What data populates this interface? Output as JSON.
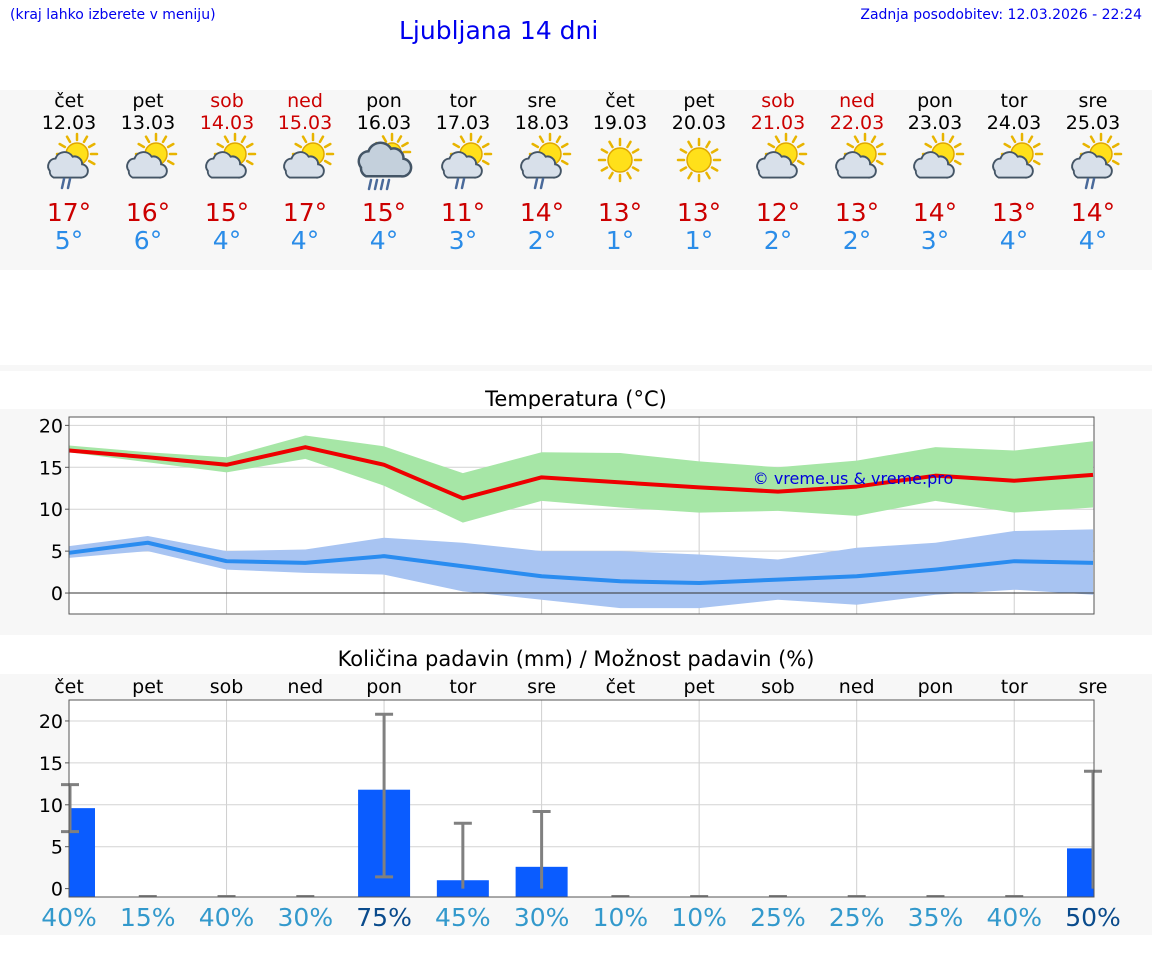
{
  "header": {
    "hint": "(kraj lahko izberete v meniju)",
    "title": "Ljubljana 14 dni",
    "updated": "Zadnja posodobitev: 12.03.2026 - 22:24"
  },
  "days": [
    {
      "name": "čet",
      "date": "12.03",
      "weekend": false,
      "icon": "partly-cloudy-sun-rain-icon",
      "max": "17°",
      "min": "5°"
    },
    {
      "name": "pet",
      "date": "13.03",
      "weekend": false,
      "icon": "partly-cloudy-sun-icon",
      "max": "16°",
      "min": "6°"
    },
    {
      "name": "sob",
      "date": "14.03",
      "weekend": true,
      "icon": "partly-cloudy-sun-icon",
      "max": "15°",
      "min": "4°"
    },
    {
      "name": "ned",
      "date": "15.03",
      "weekend": true,
      "icon": "partly-cloudy-sun-icon",
      "max": "17°",
      "min": "4°"
    },
    {
      "name": "pon",
      "date": "16.03",
      "weekend": false,
      "icon": "cloudy-rain-icon",
      "max": "15°",
      "min": "4°"
    },
    {
      "name": "tor",
      "date": "17.03",
      "weekend": false,
      "icon": "partly-cloudy-sun-rain-icon",
      "max": "11°",
      "min": "3°"
    },
    {
      "name": "sre",
      "date": "18.03",
      "weekend": false,
      "icon": "partly-cloudy-sun-rain-icon",
      "max": "14°",
      "min": "2°"
    },
    {
      "name": "čet",
      "date": "19.03",
      "weekend": false,
      "icon": "sun-icon",
      "max": "13°",
      "min": "1°"
    },
    {
      "name": "pet",
      "date": "20.03",
      "weekend": false,
      "icon": "sun-icon",
      "max": "13°",
      "min": "1°"
    },
    {
      "name": "sob",
      "date": "21.03",
      "weekend": true,
      "icon": "partly-cloudy-sun-icon",
      "max": "12°",
      "min": "2°"
    },
    {
      "name": "ned",
      "date": "22.03",
      "weekend": true,
      "icon": "partly-cloudy-sun-icon",
      "max": "13°",
      "min": "2°"
    },
    {
      "name": "pon",
      "date": "23.03",
      "weekend": false,
      "icon": "partly-cloudy-sun-icon",
      "max": "14°",
      "min": "3°"
    },
    {
      "name": "tor",
      "date": "24.03",
      "weekend": false,
      "icon": "partly-cloudy-sun-icon",
      "max": "13°",
      "min": "4°"
    },
    {
      "name": "sre",
      "date": "25.03",
      "weekend": false,
      "icon": "partly-cloudy-sun-rain-icon",
      "max": "14°",
      "min": "4°"
    }
  ],
  "colors": {
    "max_line": "#ee0000",
    "max_band": "#a6e6a6",
    "min_line": "#2a8cf0",
    "min_band": "#a8c4f2",
    "bar": "#0a5cff",
    "error": "#808080",
    "pct_light": "#3399cc",
    "pct_dark": "#0a4b8c"
  },
  "chart_data": [
    {
      "type": "line",
      "title": "Temperatura (°C)",
      "watermark": "© vreme.us & vreme.pro",
      "ylim": [
        -2.5,
        21
      ],
      "yticks": [
        "20",
        "15",
        "10",
        "5",
        "0"
      ],
      "x": [
        0,
        1,
        2,
        3,
        4,
        5,
        6,
        7,
        8,
        9,
        10,
        11,
        12,
        13
      ],
      "series": [
        {
          "name": "max",
          "values": [
            17,
            16.2,
            15.3,
            17.4,
            15.3,
            11.3,
            13.8,
            13.2,
            12.6,
            12.1,
            12.7,
            14,
            13.4,
            14.1
          ]
        },
        {
          "name": "min",
          "values": [
            4.8,
            6,
            3.8,
            3.6,
            4.4,
            3.2,
            2,
            1.4,
            1.2,
            1.6,
            2,
            2.8,
            3.8,
            3.6
          ]
        }
      ],
      "bands": [
        {
          "name": "max_range",
          "upper": [
            17.6,
            16.8,
            16.2,
            18.8,
            17.5,
            14.3,
            16.8,
            16.7,
            15.7,
            15,
            15.8,
            17.4,
            17,
            18.1
          ],
          "lower": [
            16.8,
            15.6,
            14.4,
            16,
            12.8,
            8.4,
            11,
            10.2,
            9.6,
            9.8,
            9.2,
            11,
            9.6,
            10.2
          ]
        },
        {
          "name": "min_range",
          "upper": [
            5.6,
            6.8,
            5,
            5.2,
            6.6,
            6,
            5,
            5,
            4.6,
            4,
            5.4,
            6,
            7.4,
            7.6
          ],
          "lower": [
            4.2,
            5,
            2.8,
            2.4,
            2.2,
            0.2,
            -0.8,
            -1.8,
            -1.8,
            -0.8,
            -1.4,
            -0.2,
            0.4,
            -0.2
          ]
        }
      ]
    },
    {
      "type": "bar",
      "title": "Količina padavin (mm) / Možnost padavin (%)",
      "ylim": [
        -1,
        22.5
      ],
      "yticks": [
        "20",
        "15",
        "10",
        "5",
        "0"
      ],
      "categories": [
        "čet",
        "pet",
        "sob",
        "ned",
        "pon",
        "tor",
        "sre",
        "čet",
        "pet",
        "sob",
        "ned",
        "pon",
        "tor",
        "sre"
      ],
      "values": [
        9.6,
        0,
        0,
        0,
        11.8,
        1,
        2.6,
        0,
        0,
        0,
        0,
        0,
        0,
        4.8
      ],
      "err_low": [
        6.8,
        0,
        0,
        0,
        1.4,
        0,
        0,
        0,
        0,
        0,
        0,
        0,
        0,
        0
      ],
      "err_high": [
        12.4,
        0,
        0,
        0,
        20.8,
        7.8,
        9.2,
        0,
        0,
        0,
        0,
        0,
        0,
        14
      ],
      "probability": [
        "40%",
        "15%",
        "40%",
        "30%",
        "75%",
        "45%",
        "30%",
        "10%",
        "10%",
        "25%",
        "25%",
        "35%",
        "40%",
        "50%"
      ],
      "probability_highlight": [
        false,
        false,
        false,
        false,
        true,
        false,
        false,
        false,
        false,
        false,
        false,
        false,
        false,
        true
      ]
    }
  ]
}
